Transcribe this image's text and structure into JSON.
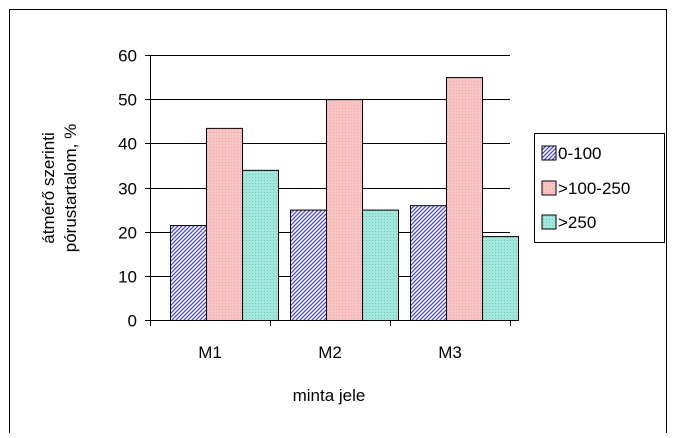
{
  "chart_data": {
    "type": "bar",
    "title": "",
    "xlabel": "minta jele",
    "ylabel_lines": [
      "átmérő szerinti",
      "pórustartalom, %"
    ],
    "categories": [
      "M1",
      "M2",
      "M3"
    ],
    "ylim": [
      0,
      60
    ],
    "yticks": [
      0,
      10,
      20,
      30,
      40,
      50,
      60
    ],
    "grid": true,
    "legend_position": "right",
    "series": [
      {
        "name": "0-100",
        "values": [
          21.5,
          25,
          26
        ],
        "color": "#6f6fd8",
        "pattern": "hatch"
      },
      {
        "name": ">100-250",
        "values": [
          43.5,
          50,
          55
        ],
        "color": "#f9c6c6",
        "pattern": "dots"
      },
      {
        "name": ">250",
        "values": [
          34,
          25,
          19
        ],
        "color": "#a5e8df",
        "pattern": "dots"
      }
    ]
  }
}
